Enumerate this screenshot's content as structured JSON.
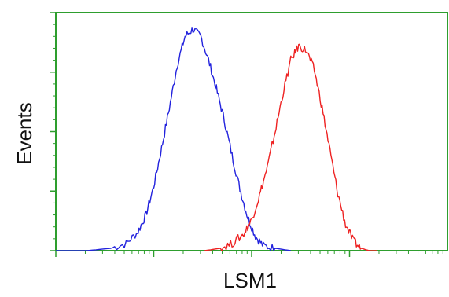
{
  "chart_data": {
    "type": "line",
    "chart_kind": "flow cytometry histogram overlay",
    "xlabel": "LSM1",
    "ylabel": "Events",
    "x_scale": "log",
    "xlim": [
      0,
      1
    ],
    "ylim": [
      0,
      1
    ],
    "tick_labels_printed": false,
    "grid": false,
    "legend": "none",
    "colors": {
      "frame": "#2e9e2e",
      "ticks": "#2e9e2e"
    },
    "series": [
      {
        "color": "#2222dd",
        "x": [
          0.0,
          0.08,
          0.14,
          0.18,
          0.21,
          0.23,
          0.25,
          0.27,
          0.29,
          0.31,
          0.33,
          0.35,
          0.37,
          0.39,
          0.41,
          0.43,
          0.45,
          0.47,
          0.49,
          0.51,
          0.53,
          0.56,
          0.6
        ],
        "y": [
          0.0,
          0.0,
          0.01,
          0.03,
          0.08,
          0.15,
          0.27,
          0.43,
          0.6,
          0.78,
          0.9,
          0.93,
          0.9,
          0.8,
          0.68,
          0.55,
          0.4,
          0.26,
          0.14,
          0.06,
          0.02,
          0.01,
          0.0
        ]
      },
      {
        "color": "#ee2222",
        "x": [
          0.38,
          0.42,
          0.45,
          0.48,
          0.5,
          0.52,
          0.54,
          0.56,
          0.58,
          0.6,
          0.62,
          0.64,
          0.66,
          0.68,
          0.7,
          0.72,
          0.74,
          0.76,
          0.78,
          0.8,
          0.82
        ],
        "y": [
          0.0,
          0.01,
          0.03,
          0.07,
          0.13,
          0.23,
          0.35,
          0.5,
          0.66,
          0.8,
          0.86,
          0.84,
          0.76,
          0.6,
          0.42,
          0.24,
          0.11,
          0.04,
          0.01,
          0.0,
          0.0
        ]
      }
    ]
  }
}
